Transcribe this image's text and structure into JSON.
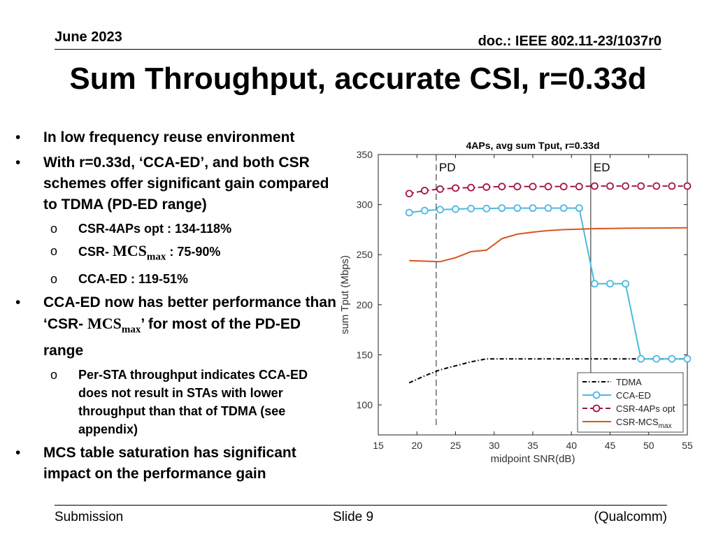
{
  "header": {
    "date": "June 2023",
    "doc": "doc.: IEEE 802.11-23/1037r0"
  },
  "title": "Sum Throughput, accurate CSI, r=0.33d",
  "bullets": {
    "b1": "In low frequency reuse environment",
    "b2": "With r=0.33d, ‘CCA-ED’, and both CSR schemes offer significant gain compared to TDMA (PD-ED range)",
    "sub1": "CSR-4APs opt : 134-118%",
    "sub2_pre": "CSR- ",
    "sub2_mcs": "MCS",
    "sub2_max": "max",
    "sub2_post": " : 75-90%",
    "sub3": "CCA-ED : 119-51%",
    "b3_pre": "CCA-ED now has better performance than ‘CSR- ",
    "b3_mcs": "MCS",
    "b3_max": "max",
    "b3_post": "’ for most of the PD-ED range",
    "sub4": "Per-STA throughput indicates CCA-ED does not result in STAs with lower throughput than that of TDMA (see appendix)",
    "b4": "MCS table saturation has significant impact on the performance gain",
    "bullet_mark": "•",
    "sub_mark": "o"
  },
  "footer": {
    "left": "Submission",
    "center": "Slide 9",
    "right": "(Qualcomm)"
  },
  "chart_data": {
    "type": "line",
    "title": "4APs, avg sum Tput, r=0.33d",
    "xlabel": "midpoint SNR(dB)",
    "ylabel": "sum Tput (Mbps)",
    "xlim": [
      15,
      55
    ],
    "ylim": [
      70,
      350
    ],
    "xticks": [
      15,
      20,
      25,
      30,
      35,
      40,
      45,
      50,
      55
    ],
    "yticks": [
      100,
      150,
      200,
      250,
      300,
      350
    ],
    "vlines": [
      {
        "x": 22.5,
        "label": "PD",
        "style": "dashed"
      },
      {
        "x": 42.5,
        "label": "ED",
        "style": "solid"
      }
    ],
    "series": [
      {
        "name": "TDMA",
        "color": "#000000",
        "dash": "6,3,1.5,3",
        "marker": false,
        "x": [
          19,
          21,
          23,
          25,
          27,
          29,
          31,
          33,
          35,
          37,
          39,
          41,
          43,
          45,
          47,
          49,
          51,
          53,
          55
        ],
        "y": [
          122,
          129,
          135,
          139,
          143,
          146,
          146,
          146,
          146,
          146,
          146,
          146,
          146,
          146,
          146,
          146,
          146,
          146,
          146
        ]
      },
      {
        "name": "CCA-ED",
        "color": "#4db8e0",
        "dash": "",
        "marker": true,
        "x": [
          19,
          21,
          23,
          25,
          27,
          29,
          31,
          33,
          35,
          37,
          39,
          41,
          43,
          45,
          47,
          49,
          51,
          53,
          55
        ],
        "y": [
          292,
          294,
          295,
          295.5,
          296,
          296,
          296.5,
          296.5,
          296.5,
          296.5,
          296.5,
          296.5,
          221,
          221,
          221,
          146,
          146,
          146,
          146
        ]
      },
      {
        "name": "CSR-4APs opt",
        "color": "#a3163f",
        "dash": "7,4",
        "marker": true,
        "x": [
          19,
          21,
          23,
          25,
          27,
          29,
          31,
          33,
          35,
          37,
          39,
          41,
          43,
          45,
          47,
          49,
          51,
          53,
          55
        ],
        "y": [
          311,
          314,
          315.5,
          316.5,
          317,
          317.5,
          318,
          318,
          318,
          318,
          318,
          318,
          318.5,
          318.5,
          318.5,
          318.5,
          318.5,
          318.5,
          318.5
        ]
      },
      {
        "name": "CSR-MCS",
        "subscript": "max",
        "color": "#d9561d",
        "dash": "",
        "marker": false,
        "x": [
          19,
          21,
          23,
          25,
          27,
          29,
          31,
          33,
          35,
          37,
          39,
          41,
          43,
          45,
          47,
          49,
          51,
          53,
          55
        ],
        "y": [
          244,
          243.5,
          243,
          247,
          253,
          254.5,
          266,
          270.5,
          272.5,
          274,
          275,
          275.5,
          276,
          276.2,
          276.4,
          276.5,
          276.6,
          276.7,
          276.8
        ]
      }
    ],
    "legend_position": "bottom-right"
  }
}
